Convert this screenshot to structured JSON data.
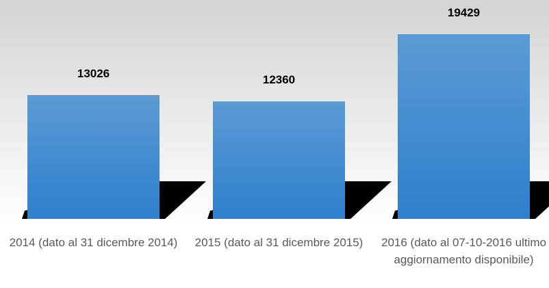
{
  "chart_data": {
    "type": "bar",
    "categories": [
      "2014 (dato al 31 dicembre 2014)",
      "2015 (dato al 31 dicembre 2015)",
      "2016 (dato al 07-10-2016 ultimo aggiornamento disponibile)"
    ],
    "values": [
      13026,
      12360,
      19429
    ],
    "color": "#5b9bd5"
  }
}
